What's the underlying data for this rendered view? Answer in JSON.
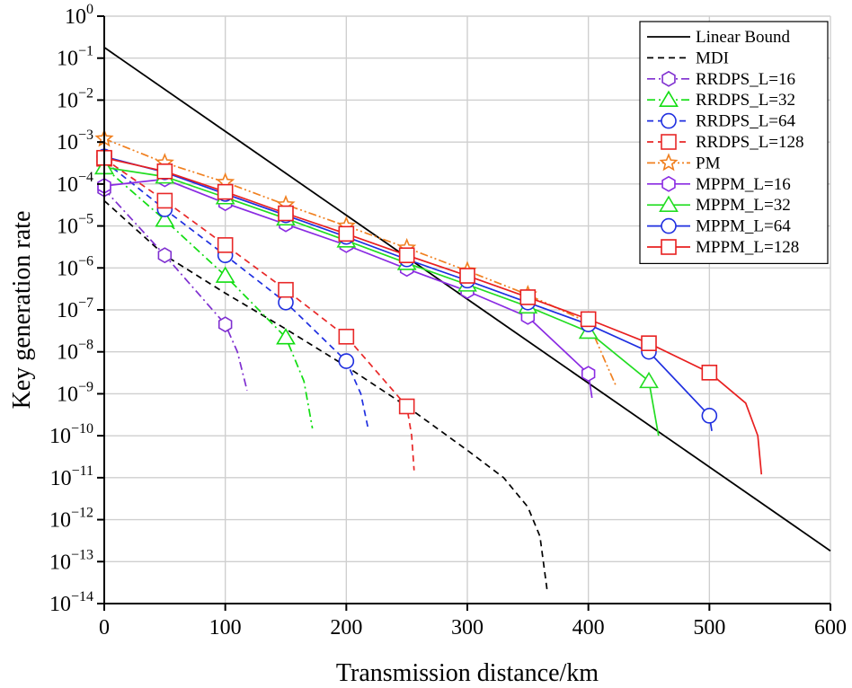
{
  "chart_data": {
    "type": "line",
    "title": "",
    "xlabel": "Transmission distance/km",
    "ylabel": "Key generation rate",
    "xlim": [
      0,
      600
    ],
    "ylim_exponent": [
      -14,
      0
    ],
    "y_scale": "log",
    "x_ticks": [
      0,
      100,
      200,
      300,
      400,
      500,
      600
    ],
    "y_tick_exponents": [
      0,
      -1,
      -2,
      -3,
      -4,
      -5,
      -6,
      -7,
      -8,
      -9,
      -10,
      -11,
      -12,
      -13,
      -14
    ],
    "grid": true,
    "legend_position": "top-right",
    "series": [
      {
        "name": "Linear Bound",
        "color": "#000000",
        "dash": "solid",
        "marker": "none",
        "x": [
          0,
          600
        ],
        "y": [
          0.18,
          1.8e-13
        ]
      },
      {
        "name": "MDI",
        "color": "#000000",
        "dash": "dashed",
        "marker": "none",
        "x": [
          0,
          50,
          100,
          150,
          200,
          250,
          300,
          330,
          350,
          360,
          366
        ],
        "y": [
          4e-05,
          2e-06,
          2.5e-07,
          3.5e-08,
          4.5e-09,
          5e-10,
          4.5e-11,
          1e-11,
          2e-12,
          4e-13,
          2e-14
        ]
      },
      {
        "name": "RRDPS_L=16",
        "color": "#7F2FD0",
        "dash": "dashdot",
        "marker": "hexagon",
        "x": [
          0,
          50,
          100,
          110,
          118
        ],
        "y": [
          7.5e-05,
          2e-06,
          4.5e-08,
          1e-08,
          1.2e-09
        ],
        "marker_x": [
          0,
          50,
          100
        ]
      },
      {
        "name": "RRDPS_L=32",
        "color": "#11DD11",
        "dash": "dashdot",
        "marker": "triangle",
        "x": [
          0,
          50,
          100,
          150,
          165,
          172
        ],
        "y": [
          0.00025,
          1.4e-05,
          6.5e-07,
          2.2e-08,
          2e-09,
          1.5e-10
        ],
        "marker_x": [
          0,
          50,
          100,
          150
        ]
      },
      {
        "name": "RRDPS_L=64",
        "color": "#1F2FE0",
        "dash": "dashed",
        "marker": "circle",
        "x": [
          0,
          50,
          100,
          150,
          200,
          212,
          218
        ],
        "y": [
          0.00035,
          2.5e-05,
          2e-06,
          1.5e-07,
          6e-09,
          1e-09,
          1.5e-10
        ],
        "marker_x": [
          0,
          50,
          100,
          150,
          200
        ]
      },
      {
        "name": "RRDPS_L=128",
        "color": "#E82828",
        "dash": "dashed",
        "marker": "square",
        "x": [
          0,
          50,
          100,
          150,
          200,
          250,
          254,
          256
        ],
        "y": [
          0.0004,
          4e-05,
          3.5e-06,
          3e-07,
          2.3e-08,
          5e-10,
          1e-10,
          1.5e-11
        ],
        "marker_x": [
          0,
          50,
          100,
          150,
          200,
          250
        ]
      },
      {
        "name": "PM",
        "color": "#F08020",
        "dash": "dashdotdot",
        "marker": "star",
        "x": [
          0,
          50,
          100,
          150,
          200,
          250,
          300,
          350,
          400,
          415,
          423
        ],
        "y": [
          0.0012,
          0.00032,
          0.00011,
          3.2e-05,
          1e-05,
          3e-06,
          8.5e-07,
          2.3e-07,
          5e-08,
          5e-09,
          1.5e-09
        ],
        "marker_x": [
          0,
          50,
          100,
          150,
          200,
          250,
          300,
          350
        ]
      },
      {
        "name": "MPPM_L=16",
        "color": "#8A2BE2",
        "dash": "solid",
        "marker": "hexagon",
        "x": [
          0,
          50,
          100,
          150,
          200,
          250,
          300,
          350,
          400,
          403
        ],
        "y": [
          9e-05,
          0.00013,
          3.5e-05,
          1.1e-05,
          3.5e-06,
          9.5e-07,
          2.8e-07,
          6.8e-08,
          3e-09,
          8e-10
        ],
        "marker_x": [
          0,
          50,
          100,
          150,
          200,
          250,
          300,
          350,
          400
        ]
      },
      {
        "name": "MPPM_L=32",
        "color": "#22DD22",
        "dash": "solid",
        "marker": "triangle",
        "x": [
          0,
          50,
          100,
          150,
          200,
          250,
          300,
          350,
          400,
          450,
          458
        ],
        "y": [
          0.00025,
          0.00015,
          4.8e-05,
          1.5e-05,
          4.5e-06,
          1.3e-06,
          4e-07,
          1.2e-07,
          3e-08,
          2e-09,
          1e-10
        ],
        "marker_x": [
          0,
          50,
          100,
          150,
          200,
          250,
          300,
          350,
          400,
          450
        ]
      },
      {
        "name": "MPPM_L=64",
        "color": "#1F2FE0",
        "dash": "solid",
        "marker": "circle",
        "x": [
          0,
          50,
          100,
          150,
          200,
          250,
          300,
          350,
          400,
          450,
          500,
          502
        ],
        "y": [
          0.00045,
          0.00019,
          5.8e-05,
          1.8e-05,
          5.5e-06,
          1.6e-06,
          5e-07,
          1.5e-07,
          4.5e-08,
          1e-08,
          3e-10,
          1.3e-10
        ],
        "marker_x": [
          0,
          50,
          100,
          150,
          200,
          250,
          300,
          350,
          400,
          450,
          500
        ]
      },
      {
        "name": "MPPM_L=128",
        "color": "#E82020",
        "dash": "solid",
        "marker": "square",
        "x": [
          0,
          50,
          100,
          150,
          200,
          250,
          300,
          350,
          400,
          450,
          500,
          530,
          540,
          543
        ],
        "y": [
          0.00042,
          0.0002,
          6.5e-05,
          2e-05,
          6.5e-06,
          2e-06,
          6.5e-07,
          2e-07,
          6e-08,
          1.6e-08,
          3.2e-09,
          6e-10,
          1e-10,
          1.2e-11
        ],
        "marker_x": [
          0,
          50,
          100,
          150,
          200,
          250,
          300,
          350,
          400,
          450,
          500
        ]
      }
    ]
  }
}
